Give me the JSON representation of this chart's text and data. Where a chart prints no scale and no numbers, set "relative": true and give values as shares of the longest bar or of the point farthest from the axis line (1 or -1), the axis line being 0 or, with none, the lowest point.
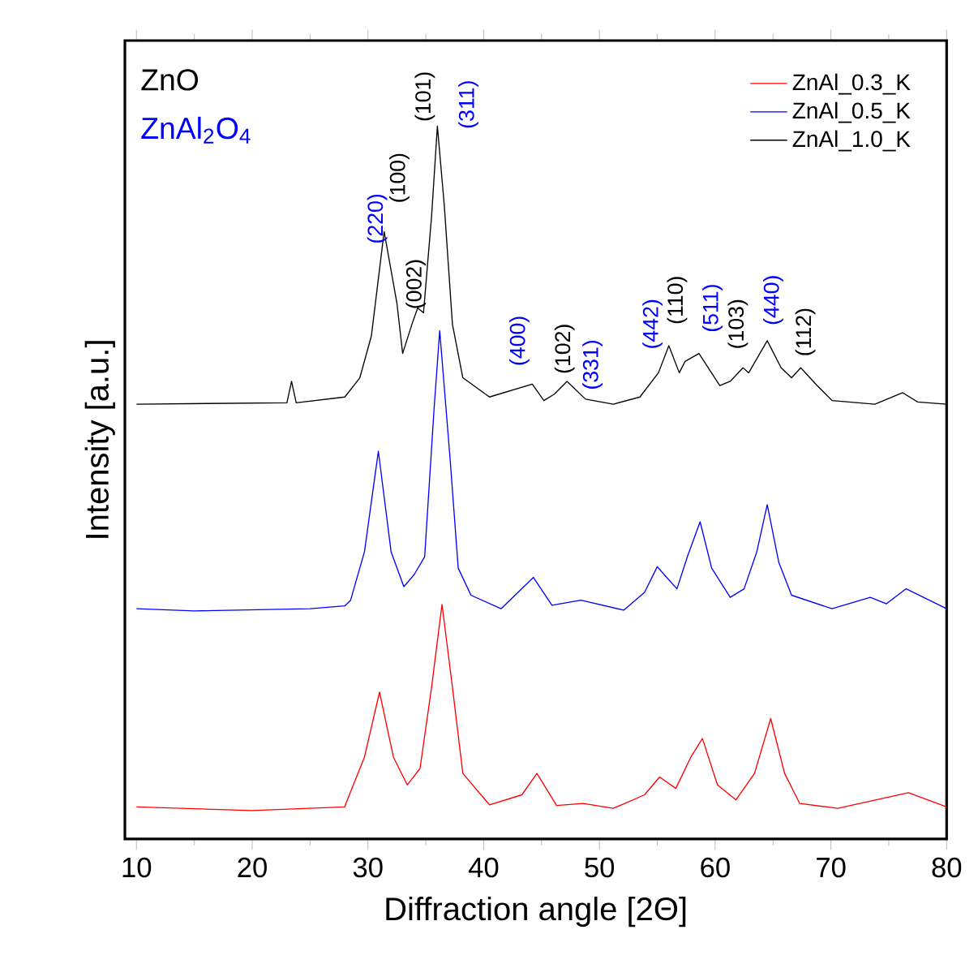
{
  "chart_data": {
    "type": "line",
    "relative": true,
    "xlabel": "Diffraction angle [2Θ]",
    "ylabel": "Intensity [a.u.]",
    "xlim": [
      9,
      80
    ],
    "xticks": [
      10,
      20,
      30,
      40,
      50,
      60,
      70,
      80
    ],
    "legend": "top right",
    "grid": false,
    "marker": "none",
    "line_style": "solid",
    "series": [
      {
        "name": "ZnAl_0.3_K",
        "color": "#ff0000",
        "x": [
          10,
          20,
          28,
          28.1,
          29.7,
          31.0,
          32.2,
          33.4,
          34.5,
          35.5,
          36.4,
          37.3,
          38.2,
          40.5,
          43.3,
          44.6,
          46.3,
          48.6,
          51.2,
          53.9,
          55.2,
          56.6,
          57.9,
          58.9,
          60.2,
          61.8,
          63.4,
          64.8,
          66.0,
          67.3,
          70.6,
          73.6,
          76.7,
          80
        ],
        "values": [
          0.045,
          0.04,
          0.045,
          0.05,
          0.115,
          0.206,
          0.115,
          0.076,
          0.099,
          0.213,
          0.329,
          0.213,
          0.092,
          0.048,
          0.062,
          0.092,
          0.047,
          0.05,
          0.043,
          0.062,
          0.087,
          0.071,
          0.115,
          0.141,
          0.076,
          0.055,
          0.092,
          0.169,
          0.092,
          0.05,
          0.043,
          0.054,
          0.065,
          0.045
        ]
      },
      {
        "name": "ZnAl_0.5_K",
        "color": "#0000ff",
        "x": [
          10,
          15,
          25,
          28,
          28.5,
          29.7,
          30.9,
          32.0,
          33.1,
          34.0,
          34.9,
          35.7,
          36.2,
          37.1,
          37.8,
          38.9,
          41.5,
          44.3,
          45.9,
          48.4,
          52.1,
          53.9,
          55.0,
          55.7,
          56.7,
          57.6,
          58.7,
          59.7,
          61.3,
          62.5,
          63.6,
          64.5,
          65.5,
          66.6,
          70.1,
          73.4,
          74.8,
          76.5,
          80
        ],
        "values": [
          0.323,
          0.32,
          0.323,
          0.327,
          0.335,
          0.403,
          0.544,
          0.403,
          0.354,
          0.371,
          0.396,
          0.6,
          0.713,
          0.533,
          0.38,
          0.342,
          0.323,
          0.367,
          0.328,
          0.335,
          0.321,
          0.346,
          0.382,
          0.369,
          0.351,
          0.396,
          0.445,
          0.38,
          0.339,
          0.351,
          0.403,
          0.469,
          0.388,
          0.342,
          0.323,
          0.339,
          0.33,
          0.351,
          0.323
        ]
      },
      {
        "name": "ZnAl_1.0_K",
        "color": "#000000",
        "x": [
          10,
          23.0,
          23.4,
          23.8,
          28,
          29.3,
          30.3,
          31.4,
          32.5,
          33.0,
          33.8,
          34.3,
          34.8,
          35.5,
          36.0,
          36.6,
          37.3,
          38.2,
          40.5,
          44.2,
          45.2,
          46.1,
          47.2,
          48.8,
          51.2,
          53.5,
          55.1,
          56.0,
          56.9,
          57.4,
          58.6,
          60.4,
          61.3,
          62.4,
          62.9,
          64.5,
          65.7,
          66.6,
          67.4,
          68.7,
          70.1,
          73.8,
          76.2,
          77.5,
          80
        ],
        "values": [
          0.61,
          0.612,
          0.642,
          0.612,
          0.62,
          0.647,
          0.706,
          0.852,
          0.752,
          0.681,
          0.722,
          0.745,
          0.738,
          0.874,
          1.0,
          0.888,
          0.722,
          0.647,
          0.62,
          0.638,
          0.615,
          0.624,
          0.642,
          0.617,
          0.61,
          0.62,
          0.654,
          0.692,
          0.654,
          0.67,
          0.681,
          0.636,
          0.642,
          0.661,
          0.654,
          0.699,
          0.661,
          0.647,
          0.661,
          0.638,
          0.615,
          0.61,
          0.626,
          0.613,
          0.61
        ]
      }
    ],
    "annotations": [
      "ZnO",
      "ZnAl$_{2}$O$_{4}$",
      "(220)",
      "(100)",
      "(002)",
      "(101)",
      "(311)",
      "(400)",
      "(102)",
      "(331)",
      "(442)",
      "(110)",
      "(511)",
      "(103)",
      "(440)",
      "(112)"
    ]
  }
}
